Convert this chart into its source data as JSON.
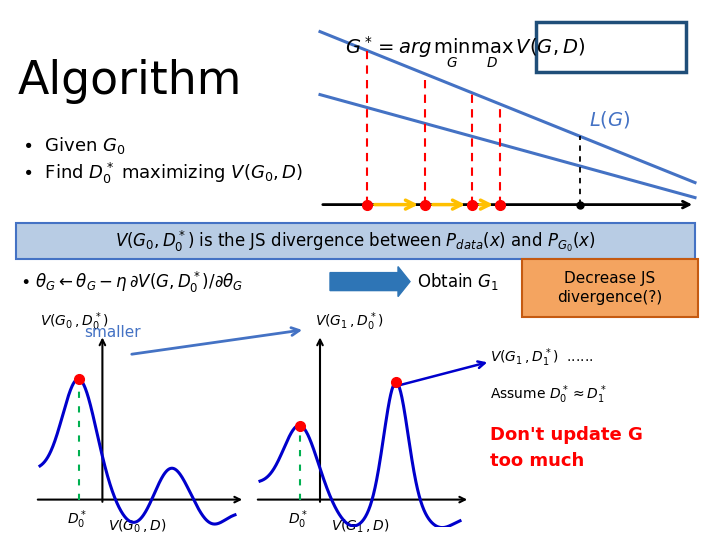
{
  "bg_color": "#ffffff",
  "fig_width": 6.93,
  "fig_height": 5.17,
  "title_text": "Algorithm",
  "formula": "$G^* = arg\\,\\underset{G}{\\min}\\underset{D}{\\max}\\,V(G,D)$",
  "lg_label": "$L(G)$",
  "bullet1": "$\\bullet$  Given $G_0$",
  "bullet2": "$\\bullet$  Find $D_0^*$ maximizing $V(G_0, D)$",
  "box_text": "$V(G_0, D_0^*)$ is the JS divergence between $P_{data}(x)$ and $P_{G_0}(x)$",
  "bullet3_text": "$\\bullet\\ \\theta_G \\leftarrow \\theta_G - \\eta\\,\\partial V(G, D_0^*)/\\partial\\theta_G$",
  "obtain_text": "Obtain $G_1$",
  "decrease_text": "Decrease JS\ndivergence(?)",
  "smaller_text": "smaller",
  "vg0d0_label": "$V(G_0\\,,D_0^*)$",
  "vg1d0_label": "$V(G_1\\,,D_0^*)$",
  "vg1d1_label": "$V(G_1\\,,D_1^*)$  ......",
  "vg0d_label": "$V(G_0\\,,D)$",
  "vg1d_label": "$V(G_1\\,,D)$",
  "d0star_label": "$D_0^*$",
  "assume_text": "Assume $D_0^* \\approx D_1^*$",
  "dont_update_text": "Don't update G\ntoo much",
  "line_color": "#4472c4",
  "curve_color": "#0000cc",
  "red_color": "#ff0000",
  "orange_color": "#ffc000",
  "green_color": "#00b050",
  "salmon_color": "#f4a460",
  "salmon_edge": "#c55a11",
  "box_fill": "#b8cce4",
  "box_edge": "#4472c4"
}
